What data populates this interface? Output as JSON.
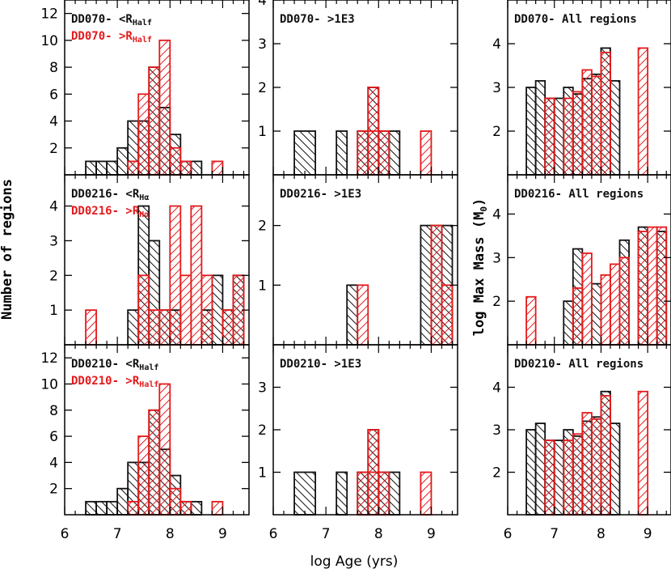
{
  "colors": {
    "black": "#111111",
    "red": "#e41a1c"
  },
  "axis_labels": {
    "x": "log Age (yrs)",
    "y_left": "Number of regions",
    "y_right": "log Max Mass (M",
    "y_right_sub": "0",
    "y_right_close": ")"
  },
  "chart_data": [
    {
      "id": "r0c0",
      "type": "bar",
      "col": 0,
      "row": 0,
      "xlim": [
        6,
        9.5
      ],
      "ylim": [
        0,
        13
      ],
      "yticks": [
        2,
        4,
        6,
        8,
        10,
        12
      ],
      "xticks": [
        6,
        7,
        8,
        9
      ],
      "labels": [
        {
          "prefix": "DD070- <R",
          "sub": "Half",
          "color": "#111111"
        },
        {
          "prefix": "DD070- >R",
          "sub": "Half",
          "color": "#e41a1c"
        }
      ],
      "series": [
        {
          "name": "<R_Half",
          "color": "#111111",
          "hatch": "back",
          "bars": [
            [
              6.4,
              6.6,
              1
            ],
            [
              6.6,
              6.8,
              1
            ],
            [
              6.8,
              7.0,
              1
            ],
            [
              7.0,
              7.2,
              2
            ],
            [
              7.2,
              7.4,
              4
            ],
            [
              7.4,
              7.6,
              4
            ],
            [
              7.6,
              7.8,
              8
            ],
            [
              7.8,
              8.0,
              5
            ],
            [
              8.0,
              8.2,
              3
            ],
            [
              8.2,
              8.4,
              1
            ],
            [
              8.4,
              8.6,
              1
            ]
          ]
        },
        {
          "name": ">R_Half",
          "color": "#e41a1c",
          "hatch": "fwd",
          "bars": [
            [
              7.2,
              7.4,
              1
            ],
            [
              7.4,
              7.6,
              6
            ],
            [
              7.6,
              7.8,
              8
            ],
            [
              7.8,
              8.0,
              10
            ],
            [
              8.0,
              8.2,
              2
            ],
            [
              8.2,
              8.4,
              1
            ],
            [
              8.8,
              9.0,
              1
            ]
          ]
        }
      ]
    },
    {
      "id": "r0c1",
      "type": "bar",
      "col": 1,
      "row": 0,
      "xlim": [
        6,
        9.5
      ],
      "ylim": [
        0,
        4
      ],
      "yticks": [
        1,
        2,
        3,
        4
      ],
      "xticks": [
        6,
        7,
        8,
        9
      ],
      "labels": [
        {
          "prefix": "DD070- >1E3",
          "sub": "",
          "color": "#111111"
        }
      ],
      "series": [
        {
          "name": "black",
          "color": "#111111",
          "hatch": "back",
          "bars": [
            [
              6.4,
              6.8,
              1
            ],
            [
              7.2,
              7.4,
              1
            ],
            [
              7.6,
              7.8,
              1
            ],
            [
              7.8,
              8.0,
              2
            ],
            [
              8.0,
              8.2,
              1
            ],
            [
              8.2,
              8.4,
              1
            ]
          ]
        },
        {
          "name": "red",
          "color": "#e41a1c",
          "hatch": "fwd",
          "bars": [
            [
              7.6,
              8.2,
              1
            ],
            [
              7.8,
              8.0,
              2
            ],
            [
              8.8,
              9.0,
              1
            ]
          ]
        }
      ]
    },
    {
      "id": "r0c2",
      "type": "bar",
      "col": 2,
      "row": 0,
      "xlim": [
        6,
        9.5
      ],
      "ylim": [
        1,
        5
      ],
      "yticks": [
        2,
        3,
        4
      ],
      "xticks": [
        6,
        7,
        8,
        9
      ],
      "labels": [
        {
          "prefix": "DD070- All regions",
          "sub": "",
          "color": "#111111"
        }
      ],
      "series": [
        {
          "name": "black",
          "color": "#111111",
          "hatch": "back",
          "bars": [
            [
              6.4,
              6.6,
              3.0
            ],
            [
              6.6,
              6.8,
              3.15
            ],
            [
              6.8,
              7.0,
              2.75
            ],
            [
              7.0,
              7.2,
              2.75
            ],
            [
              7.2,
              7.4,
              3.0
            ],
            [
              7.4,
              7.6,
              2.85
            ],
            [
              7.6,
              7.8,
              3.2
            ],
            [
              7.8,
              8.0,
              3.3
            ],
            [
              8.0,
              8.2,
              3.9
            ],
            [
              8.2,
              8.4,
              3.15
            ]
          ]
        },
        {
          "name": "red",
          "color": "#e41a1c",
          "hatch": "fwd",
          "bars": [
            [
              6.8,
              7.0,
              2.75
            ],
            [
              7.2,
              7.4,
              2.75
            ],
            [
              7.4,
              7.6,
              2.9
            ],
            [
              7.6,
              7.8,
              3.4
            ],
            [
              7.8,
              8.0,
              3.25
            ],
            [
              8.0,
              8.2,
              3.8
            ],
            [
              8.8,
              9.0,
              3.9
            ]
          ]
        }
      ]
    },
    {
      "id": "r1c0",
      "type": "bar",
      "col": 0,
      "row": 1,
      "xlim": [
        6,
        9.5
      ],
      "ylim": [
        0,
        4.9
      ],
      "yticks": [
        1,
        2,
        3,
        4
      ],
      "xticks": [
        6,
        7,
        8,
        9
      ],
      "labels": [
        {
          "prefix": "DD0216- <R",
          "sub": "Hα",
          "color": "#111111"
        },
        {
          "prefix": "DD0216- >R",
          "sub": "Hα",
          "color": "#e41a1c"
        }
      ],
      "series": [
        {
          "name": "black",
          "color": "#111111",
          "hatch": "back",
          "bars": [
            [
              7.2,
              7.4,
              1
            ],
            [
              7.4,
              7.6,
              4
            ],
            [
              7.6,
              7.8,
              3
            ],
            [
              7.8,
              8.0,
              1
            ],
            [
              8.0,
              8.2,
              1
            ],
            [
              8.6,
              8.8,
              1
            ],
            [
              8.8,
              9.0,
              2
            ],
            [
              9.0,
              9.2,
              1
            ],
            [
              9.2,
              9.4,
              2
            ]
          ]
        },
        {
          "name": "red",
          "color": "#e41a1c",
          "hatch": "fwd",
          "bars": [
            [
              6.4,
              6.6,
              1
            ],
            [
              7.4,
              7.6,
              2
            ],
            [
              7.6,
              7.8,
              1
            ],
            [
              7.8,
              8.0,
              1
            ],
            [
              8.0,
              8.2,
              4
            ],
            [
              8.2,
              8.4,
              2
            ],
            [
              8.4,
              8.6,
              4
            ],
            [
              8.6,
              8.8,
              2
            ],
            [
              9.0,
              9.2,
              1
            ],
            [
              9.2,
              9.4,
              2
            ]
          ]
        }
      ]
    },
    {
      "id": "r1c1",
      "type": "bar",
      "col": 1,
      "row": 1,
      "xlim": [
        6,
        9.5
      ],
      "ylim": [
        0,
        2.85
      ],
      "yticks": [
        1,
        2
      ],
      "xticks": [
        6,
        7,
        8,
        9
      ],
      "labels": [
        {
          "prefix": "DD0216- >1E3",
          "sub": "",
          "color": "#111111"
        }
      ],
      "series": [
        {
          "name": "black",
          "color": "#111111",
          "hatch": "back",
          "bars": [
            [
              7.4,
              7.6,
              1
            ],
            [
              8.8,
              9.0,
              2
            ],
            [
              9.0,
              9.2,
              2
            ],
            [
              9.2,
              9.4,
              2
            ]
          ]
        },
        {
          "name": "red",
          "color": "#e41a1c",
          "hatch": "fwd",
          "bars": [
            [
              7.6,
              7.8,
              1
            ],
            [
              9.0,
              9.2,
              2
            ],
            [
              9.2,
              9.4,
              1
            ]
          ]
        }
      ]
    },
    {
      "id": "r1c2",
      "type": "bar",
      "col": 2,
      "row": 1,
      "xlim": [
        6,
        9.5
      ],
      "ylim": [
        1,
        4.9
      ],
      "yticks": [
        2,
        3,
        4
      ],
      "xticks": [
        6,
        7,
        8,
        9
      ],
      "labels": [
        {
          "prefix": "DD0216- All regions",
          "sub": "",
          "color": "#111111"
        }
      ],
      "series": [
        {
          "name": "black",
          "color": "#111111",
          "hatch": "back",
          "bars": [
            [
              7.2,
              7.4,
              2.0
            ],
            [
              7.4,
              7.6,
              3.2
            ],
            [
              7.8,
              8.0,
              2.4
            ],
            [
              8.4,
              8.6,
              3.4
            ],
            [
              8.8,
              9.0,
              3.7
            ],
            [
              9.2,
              9.4,
              3.6
            ]
          ]
        },
        {
          "name": "red",
          "color": "#e41a1c",
          "hatch": "fwd",
          "bars": [
            [
              6.4,
              6.6,
              2.1
            ],
            [
              7.4,
              7.6,
              2.3
            ],
            [
              7.6,
              7.8,
              3.1
            ],
            [
              8.0,
              8.2,
              2.6
            ],
            [
              8.2,
              8.4,
              2.85
            ],
            [
              8.4,
              8.6,
              3.0
            ],
            [
              8.8,
              9.0,
              3.6
            ],
            [
              9.0,
              9.2,
              3.7
            ],
            [
              9.2,
              9.4,
              3.7
            ]
          ]
        }
      ]
    },
    {
      "id": "r2c0",
      "type": "bar",
      "col": 0,
      "row": 2,
      "xlim": [
        6,
        9.5
      ],
      "ylim": [
        0,
        13
      ],
      "yticks": [
        2,
        4,
        6,
        8,
        10,
        12
      ],
      "xticks": [
        6,
        7,
        8,
        9
      ],
      "labels": [
        {
          "prefix": "DD0210- <R",
          "sub": "Half",
          "color": "#111111"
        },
        {
          "prefix": "DD0210- >R",
          "sub": "Half",
          "color": "#e41a1c"
        }
      ],
      "series": [
        {
          "name": "<R_Half",
          "color": "#111111",
          "hatch": "back",
          "bars": [
            [
              6.4,
              6.6,
              1
            ],
            [
              6.6,
              6.8,
              1
            ],
            [
              6.8,
              7.0,
              1
            ],
            [
              7.0,
              7.2,
              2
            ],
            [
              7.2,
              7.4,
              4
            ],
            [
              7.4,
              7.6,
              4
            ],
            [
              7.6,
              7.8,
              8
            ],
            [
              7.8,
              8.0,
              5
            ],
            [
              8.0,
              8.2,
              3
            ],
            [
              8.2,
              8.4,
              1
            ],
            [
              8.4,
              8.6,
              1
            ]
          ]
        },
        {
          "name": ">R_Half",
          "color": "#e41a1c",
          "hatch": "fwd",
          "bars": [
            [
              7.2,
              7.4,
              1
            ],
            [
              7.4,
              7.6,
              6
            ],
            [
              7.6,
              7.8,
              8
            ],
            [
              7.8,
              8.0,
              10
            ],
            [
              8.0,
              8.2,
              2
            ],
            [
              8.2,
              8.4,
              1
            ],
            [
              8.8,
              9.0,
              1
            ]
          ]
        }
      ]
    },
    {
      "id": "r2c1",
      "type": "bar",
      "col": 1,
      "row": 2,
      "xlim": [
        6,
        9.5
      ],
      "ylim": [
        0,
        4
      ],
      "yticks": [
        1,
        2,
        3
      ],
      "xticks": [
        6,
        7,
        8,
        9
      ],
      "labels": [
        {
          "prefix": "DD0210- >1E3",
          "sub": "",
          "color": "#111111"
        }
      ],
      "series": [
        {
          "name": "black",
          "color": "#111111",
          "hatch": "back",
          "bars": [
            [
              6.4,
              6.8,
              1
            ],
            [
              7.2,
              7.4,
              1
            ],
            [
              7.6,
              7.8,
              1
            ],
            [
              7.8,
              8.0,
              2
            ],
            [
              8.0,
              8.2,
              1
            ],
            [
              8.2,
              8.4,
              1
            ]
          ]
        },
        {
          "name": "red",
          "color": "#e41a1c",
          "hatch": "fwd",
          "bars": [
            [
              7.6,
              8.2,
              1
            ],
            [
              7.8,
              8.0,
              2
            ],
            [
              8.8,
              9.0,
              1
            ]
          ]
        }
      ]
    },
    {
      "id": "r2c2",
      "type": "bar",
      "col": 2,
      "row": 2,
      "xlim": [
        6,
        9.5
      ],
      "ylim": [
        1,
        5
      ],
      "yticks": [
        2,
        3,
        4
      ],
      "xticks": [
        6,
        7,
        8,
        9
      ],
      "labels": [
        {
          "prefix": "DD0210- All regions",
          "sub": "",
          "color": "#111111"
        }
      ],
      "series": [
        {
          "name": "black",
          "color": "#111111",
          "hatch": "back",
          "bars": [
            [
              6.4,
              6.6,
              3.0
            ],
            [
              6.6,
              6.8,
              3.15
            ],
            [
              6.8,
              7.0,
              2.75
            ],
            [
              7.0,
              7.2,
              2.75
            ],
            [
              7.2,
              7.4,
              3.0
            ],
            [
              7.4,
              7.6,
              2.85
            ],
            [
              7.6,
              7.8,
              3.2
            ],
            [
              7.8,
              8.0,
              3.3
            ],
            [
              8.0,
              8.2,
              3.9
            ],
            [
              8.2,
              8.4,
              3.15
            ]
          ]
        },
        {
          "name": "red",
          "color": "#e41a1c",
          "hatch": "fwd",
          "bars": [
            [
              6.8,
              7.0,
              2.75
            ],
            [
              7.2,
              7.4,
              2.75
            ],
            [
              7.4,
              7.6,
              2.9
            ],
            [
              7.6,
              7.8,
              3.4
            ],
            [
              7.8,
              8.0,
              3.25
            ],
            [
              8.0,
              8.2,
              3.8
            ],
            [
              8.8,
              9.0,
              3.9
            ]
          ]
        }
      ]
    }
  ]
}
